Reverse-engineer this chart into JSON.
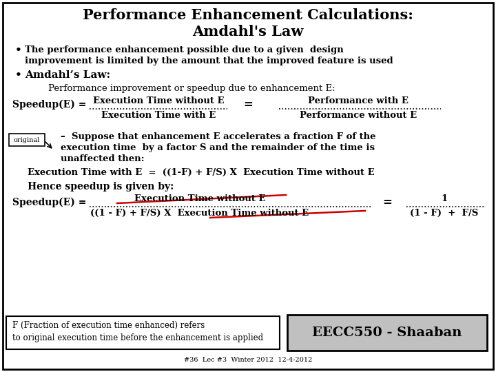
{
  "title_line1": "Performance Enhancement Calculations:",
  "title_line2": "Amdahl's Law",
  "bg_color": "#ffffff",
  "border_color": "#000000",
  "text_color": "#000000",
  "red_color": "#cc0000",
  "bullet1_line1": "The performance enhancement possible due to a given  design",
  "bullet1_line2": "improvement is limited by the amount that the improved feature is used",
  "bullet2": "Amdahl’s Law:",
  "perf_improve": "Performance improvement or speedup due to enhancement E:",
  "speedup_label": "Speedup(E) =",
  "fraction_top1_num": "Execution Time without E",
  "fraction_top1_den": "Execution Time with E",
  "equals1": "=",
  "fraction_top2_num": "Performance with E",
  "fraction_top2_den": "Performance without E",
  "original_box": "original",
  "suppose_line1": "–  Suppose that enhancement E accelerates a fraction F of the",
  "suppose_line2": "execution time  by a factor S and the remainder of the time is",
  "suppose_line3": "unaffected then:",
  "exec_eq": "Execution Time with E  =  ((1-F) + F/S) X  Execution Time without E",
  "hence": "Hence speedup is given by:",
  "speedup2_label": "Speedup(E) =",
  "frac2_num": "Execution Time without E",
  "frac2_den": "((1 - F) + F/S) X  Execution Time without E",
  "eq2": "=",
  "frac3_num": "1",
  "frac3_den": "(1 - F)  +  F/S",
  "footnote1": "F (Fraction of execution time enhanced) refers",
  "footnote2": "to original execution time before the enhancement is applied",
  "eecc": "EECC550 - Shaaban",
  "bottom_text": "#36  Lec #3  Winter 2012  12-4-2012"
}
